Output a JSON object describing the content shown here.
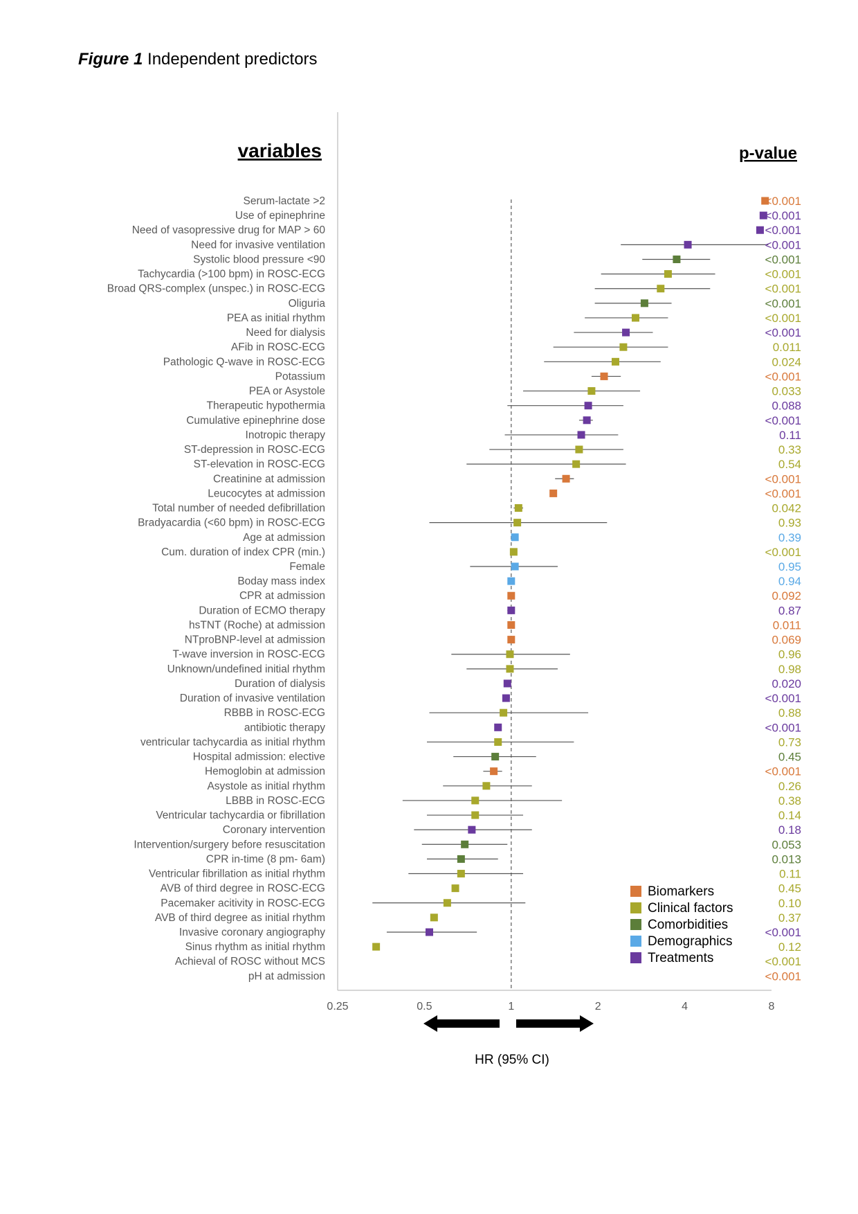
{
  "figure": {
    "label": "Figure 1",
    "caption": "Independent predictors"
  },
  "colors": {
    "Biomarkers": "#d8783a",
    "Clinical factors": "#a8a82c",
    "Comorbidities": "#5c7e3a",
    "Demographics": "#5aa9e6",
    "Treatments": "#6a3a9e"
  },
  "chart_data": {
    "type": "forest",
    "xscale": "log2",
    "xlim": [
      0.25,
      8
    ],
    "xticks": [
      "0.25",
      "0.5",
      "1",
      "2",
      "4",
      "8"
    ],
    "reference_line": 1,
    "xlabel": "HR (95% CI)",
    "left_header": "variables",
    "right_header": "p-value",
    "legend": [
      "Biomarkers",
      "Clinical factors",
      "Comorbidities",
      "Demographics",
      "Treatments"
    ],
    "rows": [
      {
        "label": "Serum-lactate >2",
        "group": "Biomarkers",
        "hr": 7.6,
        "lo": null,
        "hi": null,
        "p": "<0.001"
      },
      {
        "label": "Use of epinephrine",
        "group": "Treatments",
        "hr": 7.5,
        "lo": null,
        "hi": null,
        "p": "<0.001"
      },
      {
        "label": "Need of vasopressive drug for MAP > 60",
        "group": "Treatments",
        "hr": 7.3,
        "lo": null,
        "hi": null,
        "p": "<0.001"
      },
      {
        "label": "Need for invasive ventilation",
        "group": "Treatments",
        "hr": 4.1,
        "lo": 2.4,
        "hi": 7.8,
        "p": "<0.001"
      },
      {
        "label": "Systolic blood pressure <90",
        "group": "Comorbidities",
        "hr": 3.75,
        "lo": 2.85,
        "hi": 4.9,
        "p": "<0.001"
      },
      {
        "label": "Tachycardia (>100 bpm) in ROSC-ECG",
        "group": "Clinical factors",
        "hr": 3.5,
        "lo": 2.05,
        "hi": 5.1,
        "p": "<0.001"
      },
      {
        "label": "Broad QRS-complex (unspec.) in ROSC-ECG",
        "group": "Clinical factors",
        "hr": 3.3,
        "lo": 1.95,
        "hi": 4.9,
        "p": "<0.001"
      },
      {
        "label": "Oliguria",
        "group": "Comorbidities",
        "hr": 2.9,
        "lo": 1.95,
        "hi": 3.6,
        "p": "<0.001"
      },
      {
        "label": "PEA as initial rhythm",
        "group": "Clinical factors",
        "hr": 2.7,
        "lo": 1.8,
        "hi": 3.5,
        "p": "<0.001"
      },
      {
        "label": "Need for dialysis",
        "group": "Treatments",
        "hr": 2.5,
        "lo": 1.65,
        "hi": 3.1,
        "p": "<0.001"
      },
      {
        "label": "AFib in ROSC-ECG",
        "group": "Clinical factors",
        "hr": 2.45,
        "lo": 1.4,
        "hi": 3.5,
        "p": "0.011"
      },
      {
        "label": "Pathologic Q-wave in ROSC-ECG",
        "group": "Clinical factors",
        "hr": 2.3,
        "lo": 1.3,
        "hi": 3.3,
        "p": "0.024"
      },
      {
        "label": "Potassium",
        "group": "Biomarkers",
        "hr": 2.1,
        "lo": 1.9,
        "hi": 2.4,
        "p": "<0.001"
      },
      {
        "label": "PEA or Asystole",
        "group": "Clinical factors",
        "hr": 1.9,
        "lo": 1.1,
        "hi": 2.8,
        "p": "0.033"
      },
      {
        "label": "Therapeutic hypothermia",
        "group": "Treatments",
        "hr": 1.85,
        "lo": 0.97,
        "hi": 2.45,
        "p": "0.088"
      },
      {
        "label": "Cumulative epinephrine dose",
        "group": "Treatments",
        "hr": 1.83,
        "lo": 1.72,
        "hi": 1.92,
        "p": "<0.001"
      },
      {
        "label": "Inotropic therapy",
        "group": "Treatments",
        "hr": 1.75,
        "lo": 0.95,
        "hi": 2.35,
        "p": "0.11"
      },
      {
        "label": "ST-depression in ROSC-ECG",
        "group": "Clinical factors",
        "hr": 1.72,
        "lo": 0.84,
        "hi": 2.45,
        "p": "0.33"
      },
      {
        "label": "ST-elevation in ROSC-ECG",
        "group": "Clinical factors",
        "hr": 1.68,
        "lo": 0.7,
        "hi": 2.5,
        "p": "0.54"
      },
      {
        "label": "Creatinine at admission",
        "group": "Biomarkers",
        "hr": 1.55,
        "lo": 1.42,
        "hi": 1.65,
        "p": "<0.001"
      },
      {
        "label": "Leucocytes at admission",
        "group": "Biomarkers",
        "hr": 1.4,
        "lo": null,
        "hi": null,
        "p": "<0.001"
      },
      {
        "label": "Total number of needed defibrillation",
        "group": "Clinical factors",
        "hr": 1.06,
        "lo": 1.02,
        "hi": 1.1,
        "p": "0.042"
      },
      {
        "label": "Bradyacardia (<60 bpm) in ROSC-ECG",
        "group": "Clinical factors",
        "hr": 1.05,
        "lo": 0.52,
        "hi": 2.15,
        "p": "0.93"
      },
      {
        "label": "Age at admission",
        "group": "Demographics",
        "hr": 1.03,
        "lo": null,
        "hi": null,
        "p": "0.39"
      },
      {
        "label": "Cum. duration of index CPR (min.)",
        "group": "Clinical factors",
        "hr": 1.02,
        "lo": null,
        "hi": null,
        "p": "<0.001"
      },
      {
        "label": "Female",
        "group": "Demographics",
        "hr": 1.03,
        "lo": 0.72,
        "hi": 1.45,
        "p": "0.95"
      },
      {
        "label": "Boday mass index",
        "group": "Demographics",
        "hr": 1.0,
        "lo": null,
        "hi": null,
        "p": "0.94"
      },
      {
        "label": "CPR at admission",
        "group": "Biomarkers",
        "hr": 1.0,
        "lo": null,
        "hi": null,
        "p": "0.092"
      },
      {
        "label": "Duration of ECMO therapy",
        "group": "Treatments",
        "hr": 1.0,
        "lo": 0.97,
        "hi": 1.03,
        "p": "0.87"
      },
      {
        "label": "hsTNT (Roche) at admission",
        "group": "Biomarkers",
        "hr": 1.0,
        "lo": null,
        "hi": null,
        "p": "0.011"
      },
      {
        "label": "NTproBNP-level at admission",
        "group": "Biomarkers",
        "hr": 1.0,
        "lo": null,
        "hi": null,
        "p": "0.069"
      },
      {
        "label": "T-wave inversion in ROSC-ECG",
        "group": "Clinical factors",
        "hr": 0.99,
        "lo": 0.62,
        "hi": 1.6,
        "p": "0.96"
      },
      {
        "label": "Unknown/undefined initial rhythm",
        "group": "Clinical factors",
        "hr": 0.99,
        "lo": 0.7,
        "hi": 1.45,
        "p": "0.98"
      },
      {
        "label": "Duration of dialysis",
        "group": "Treatments",
        "hr": 0.97,
        "lo": null,
        "hi": null,
        "p": "0.020"
      },
      {
        "label": "Duration of invasive ventilation",
        "group": "Treatments",
        "hr": 0.96,
        "lo": 0.94,
        "hi": 0.99,
        "p": "<0.001"
      },
      {
        "label": "RBBB in ROSC-ECG",
        "group": "Clinical factors",
        "hr": 0.94,
        "lo": 0.52,
        "hi": 1.85,
        "p": "0.88"
      },
      {
        "label": "antibiotic therapy",
        "group": "Treatments",
        "hr": 0.9,
        "lo": null,
        "hi": null,
        "p": "<0.001"
      },
      {
        "label": "ventricular tachycardia as initial rhythm",
        "group": "Clinical factors",
        "hr": 0.9,
        "lo": 0.51,
        "hi": 1.65,
        "p": "0.73"
      },
      {
        "label": "Hospital admission: elective",
        "group": "Comorbidities",
        "hr": 0.88,
        "lo": 0.63,
        "hi": 1.22,
        "p": "0.45"
      },
      {
        "label": "Hemoglobin at admission",
        "group": "Biomarkers",
        "hr": 0.87,
        "lo": 0.8,
        "hi": 0.93,
        "p": "<0.001"
      },
      {
        "label": "Asystole as initial rhythm",
        "group": "Clinical factors",
        "hr": 0.82,
        "lo": 0.58,
        "hi": 1.18,
        "p": "0.26"
      },
      {
        "label": "LBBB in ROSC-ECG",
        "group": "Clinical factors",
        "hr": 0.75,
        "lo": 0.42,
        "hi": 1.5,
        "p": "0.38"
      },
      {
        "label": "Ventricular tachycardia or fibrillation",
        "group": "Clinical factors",
        "hr": 0.75,
        "lo": 0.51,
        "hi": 1.1,
        "p": "0.14"
      },
      {
        "label": "Coronary intervention",
        "group": "Treatments",
        "hr": 0.73,
        "lo": 0.46,
        "hi": 1.18,
        "p": "0.18"
      },
      {
        "label": "Intervention/surgery before resuscitation",
        "group": "Comorbidities",
        "hr": 0.69,
        "lo": 0.49,
        "hi": 0.97,
        "p": "0.053"
      },
      {
        "label": "CPR in-time (8 pm- 6am)",
        "group": "Comorbidities",
        "hr": 0.67,
        "lo": 0.51,
        "hi": 0.9,
        "p": "0.013"
      },
      {
        "label": "Ventricular fibrillation as initial rhythm",
        "group": "Clinical factors",
        "hr": 0.67,
        "lo": 0.44,
        "hi": 1.1,
        "p": "0.11"
      },
      {
        "label": "AVB of third degree in ROSC-ECG",
        "group": "Clinical factors",
        "hr": 0.64,
        "lo": null,
        "hi": null,
        "p": "0.45"
      },
      {
        "label": "Pacemaker acitivity in ROSC-ECG",
        "group": "Clinical factors",
        "hr": 0.6,
        "lo": 0.33,
        "hi": 1.12,
        "p": "0.10"
      },
      {
        "label": "AVB of third degree as initial rhythm",
        "group": "Clinical factors",
        "hr": 0.54,
        "lo": null,
        "hi": null,
        "p": "0.37"
      },
      {
        "label": "Invasive coronary angiography",
        "group": "Treatments",
        "hr": 0.52,
        "lo": 0.37,
        "hi": 0.76,
        "p": "<0.001"
      },
      {
        "label": "Sinus rhythm as initial rhythm",
        "group": "Clinical factors",
        "hr": 0.34,
        "lo": null,
        "hi": null,
        "p": "0.12"
      },
      {
        "label": "Achieval of ROSC without MCS",
        "group": "Clinical factors",
        "hr": null,
        "lo": null,
        "hi": null,
        "p": "<0.001"
      },
      {
        "label": "pH at admission",
        "group": "Biomarkers",
        "hr": null,
        "lo": null,
        "hi": null,
        "p": "<0.001"
      }
    ]
  }
}
